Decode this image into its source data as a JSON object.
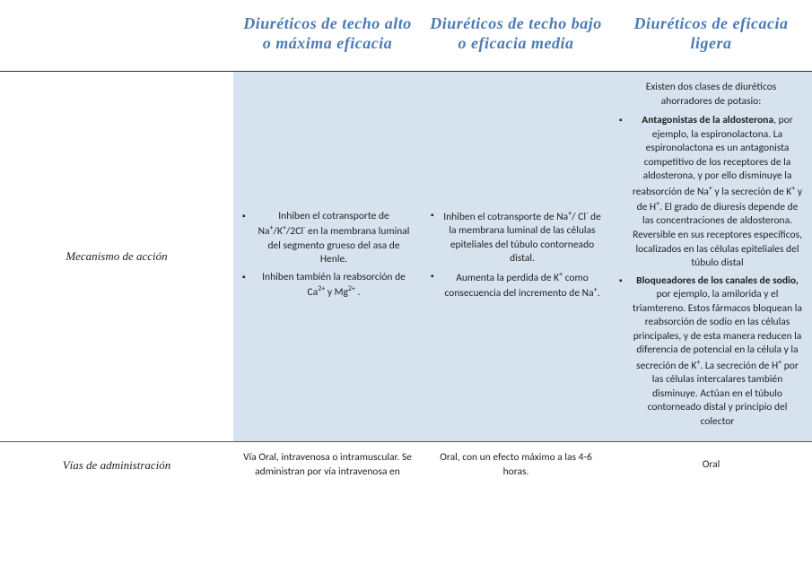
{
  "headers": {
    "blank": "",
    "col1": "Diuréticos de techo alto o máxima eficacia",
    "col2": "Diuréticos de techo bajo o eficacia media",
    "col3": "Diuréticos de eficacia ligera"
  },
  "rows": {
    "mecanismo": {
      "label": "Mecanismo de acción",
      "c1_b1_pre": "Inhiben el cotransporte de Na",
      "c1_b1_mid": "/K",
      "c1_b1_mid2": "/2Cl",
      "c1_b1_post": " en la membrana luminal del segmento grueso del asa de Henle.",
      "c1_b2_pre": "Inhiben también la reabsorción de Ca",
      "c1_b2_mid": " y Mg",
      "c1_b2_post": " .",
      "c2_b1_pre": "Inhiben el cotransporte de Na",
      "c2_b1_mid": "/ Cl",
      "c2_b1_post": " de la membrana luminal de las células epiteliales del túbulo contorneado distal.",
      "c2_b2_pre": "Aumenta la perdida de K",
      "c2_b2_mid": " como consecuencia del incremento de Na",
      "c2_b2_post": ".",
      "c3_intro": "Existen dos clases de diuréticos ahorradores de potasio:",
      "c3_b1_label": "Antagonistas de la aldosterona",
      "c3_b1_text_pre": ", por ejemplo, la espironolactona. La espironolactona es un antagonista competitivo de los receptores de la aldosterona, y por ello disminuye la reabsorción de Na",
      "c3_b1_text_mid": " y la secreción de K",
      "c3_b1_text_mid2": " y de H",
      "c3_b1_text_post": ".  El grado de diuresis depende de las concentraciones de aldosterona. Reversible en sus receptores específicos, localizados en las células epiteliales del túbulo distal",
      "c3_b2_label": "Bloqueadores de los canales de sodio,",
      "c3_b2_text_pre": " por ejemplo, la amilorida y el triamtereno.  Estos fármacos bloquean la reabsorción de sodio en las células principales, y de esta manera reducen la diferencia de potencial en la célula y la secreción de K",
      "c3_b2_text_mid": ". La secreción de H",
      "c3_b2_text_post": " por las células intercalares también disminuye. Actúan en el túbulo contorneado distal y principio del colector"
    },
    "vias": {
      "label": "Vías de administración",
      "c1": "Vía Oral, intravenosa o intramuscular. Se administran por vía intravenosa en",
      "c2": "Oral, con un efecto máximo a las 4-6 horas.",
      "c3": "Oral"
    }
  },
  "colors": {
    "header_text": "#4a7bb5",
    "cell_bg": "#d6e3ef",
    "page_bg": "#ffffff",
    "text": "#222222",
    "border": "#555555"
  },
  "typography": {
    "header_fontsize": 18,
    "body_fontsize": 11.5,
    "rowlabel_fontsize": 13
  }
}
